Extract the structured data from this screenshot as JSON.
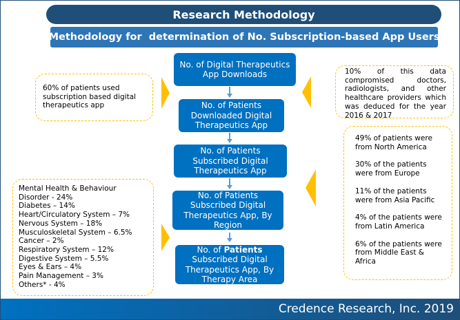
{
  "title": "Research Methodology",
  "subtitle": "Methodology for  determination of No. Subscription-based App Users",
  "steps": [
    "No. of Digital Therapeutics App Downloads",
    "No. of Patients Downloaded Digital Therapeutics App",
    "No. of Patients Subscribed Digital Therapeutics App",
    "No. of Patients Subscribed Digital Therapeutics App, By Region"
  ],
  "step5": {
    "prefix": "No. of ",
    "bold": "Patients",
    "rest": " Subscribed Digital Therapeutics App, By Therapy Area"
  },
  "notes": {
    "patients_subscription": "60% of patients used subscription based digital therapeutics app",
    "data_compromised": "10% of this data compromised doctors, radiologists, and other healthcare providers which was deduced for the year 2016 & 2017",
    "regions": [
      "49% of patients were from North America",
      "30% of the patients were from Europe",
      "11% of the patients were from Asia Pacific",
      "4% of the patients were from Latin America",
      "6% of the patients were from Middle East & Africa"
    ],
    "therapy_areas": [
      "Mental Health & Behaviour Disorder - 24%",
      "Diabetes – 14%",
      "Heart/Circulatory System – 7%",
      "Nervous System – 18%",
      "Musculoskeletal System – 6.5%",
      "Cancer – 2%",
      "Respiratory System – 12%",
      "Digestive System – 5.5%",
      "Eyes & Ears – 4%",
      "Pain Management – 3%",
      "Others* - 4%"
    ]
  },
  "footer": "Credence Research, Inc. 2019",
  "colors": {
    "dark": "#1f4e79",
    "mid": "#2e75b6",
    "step": "#0070c0",
    "accent": "#ffc000"
  }
}
